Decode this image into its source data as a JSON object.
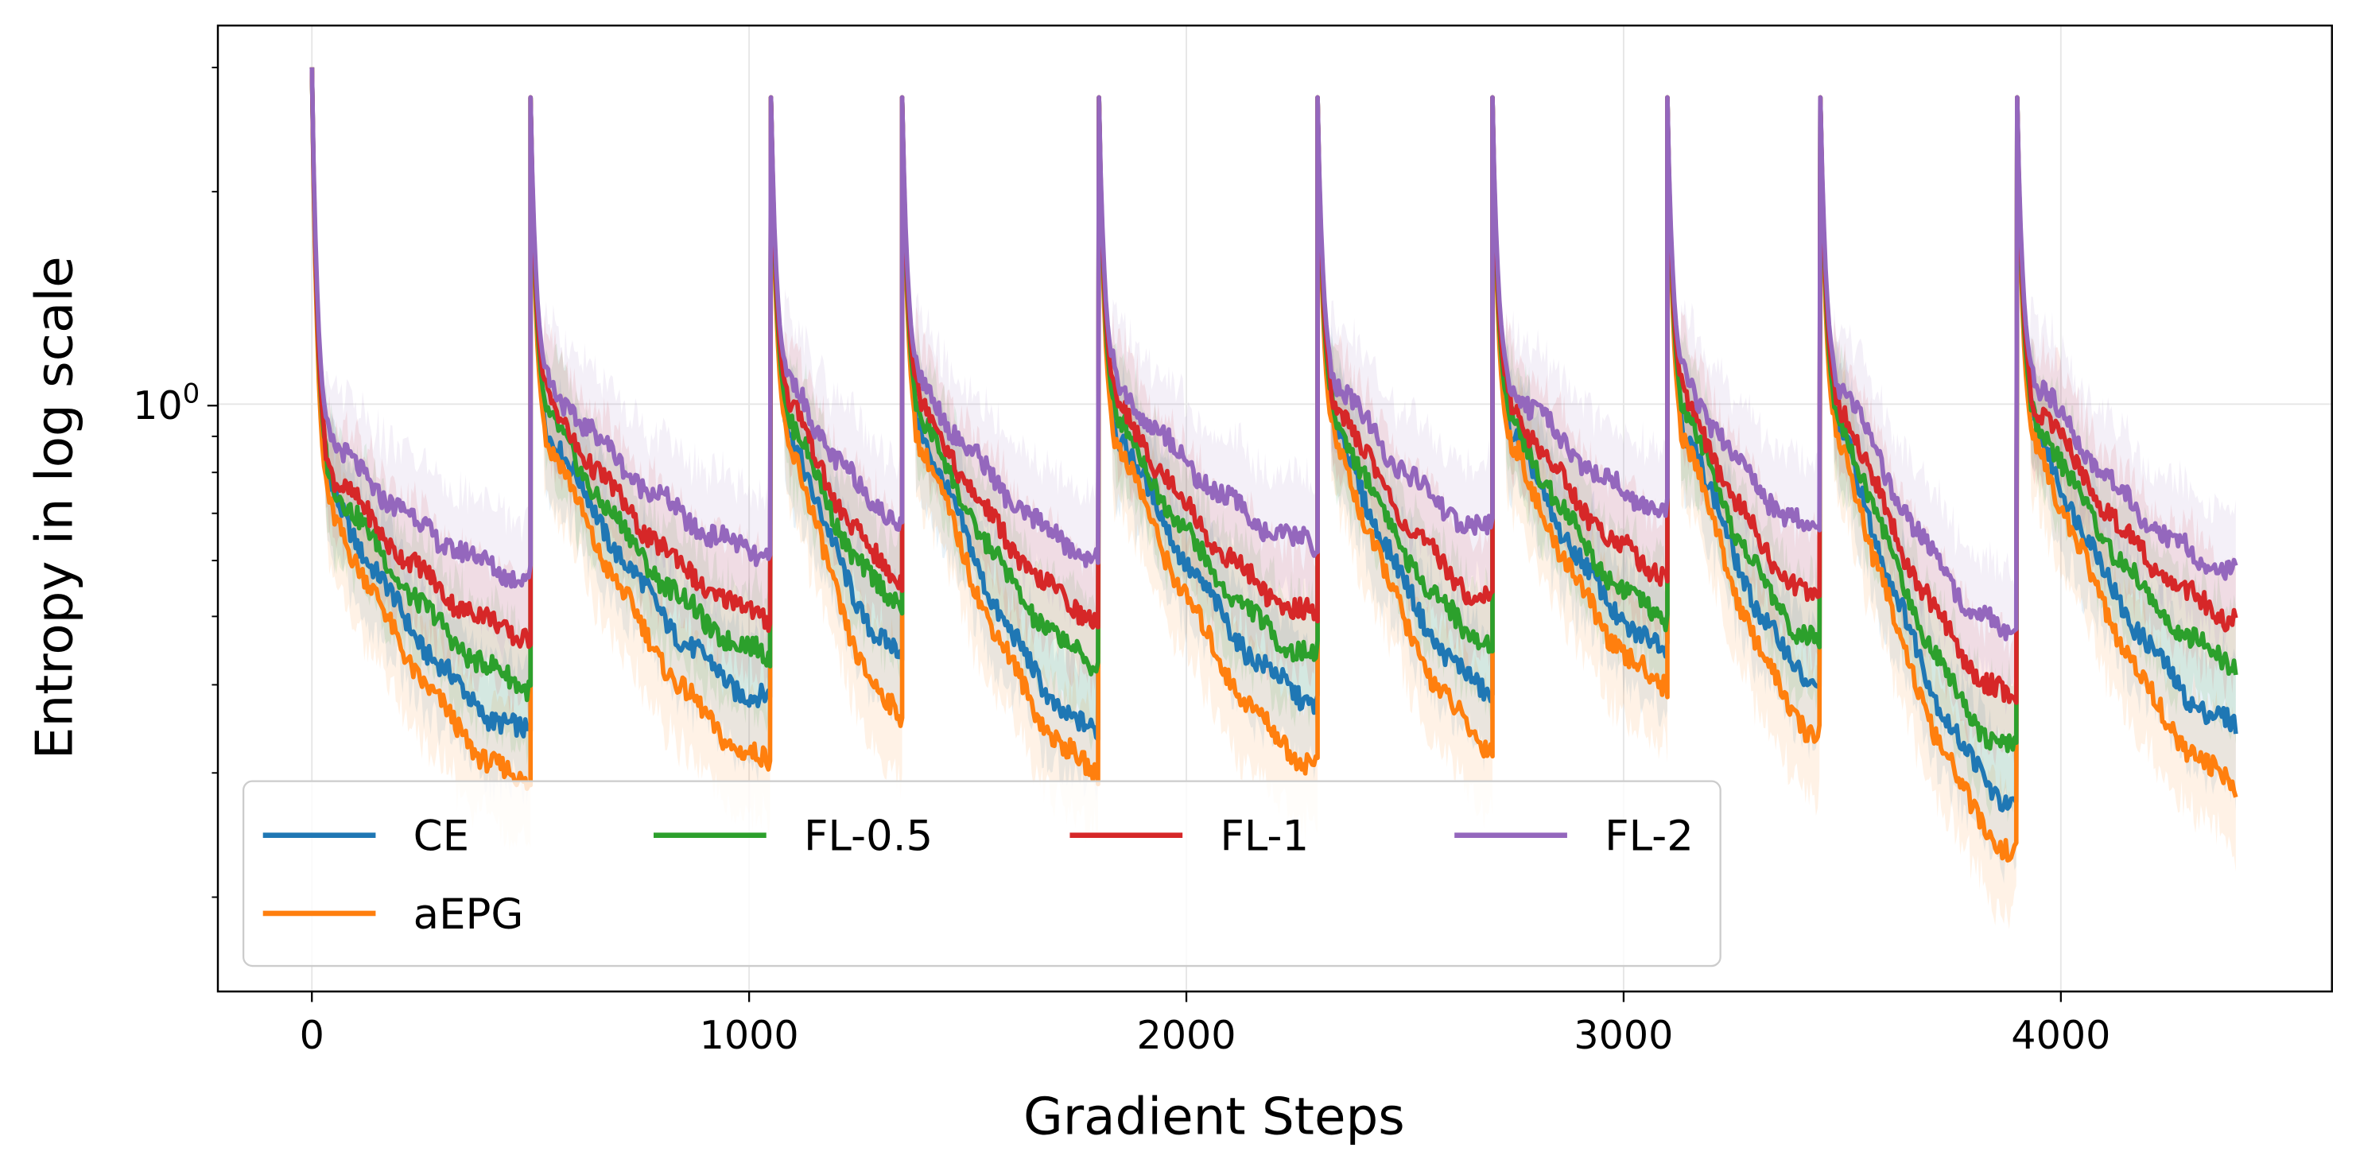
{
  "chart_data": {
    "type": "line",
    "title": "",
    "xlabel": "Gradient Steps",
    "ylabel": "Entropy in log scale",
    "yscale": "log",
    "xlim": [
      -215,
      4620
    ],
    "ylim": [
      0.147,
      3.44
    ],
    "grid": true,
    "xticks": [
      0,
      1000,
      2000,
      3000,
      4000
    ],
    "xtick_labels": [
      "0",
      "1000",
      "2000",
      "3000",
      "4000"
    ],
    "yticks": [
      1.0
    ],
    "ytick_label": {
      "base": "10",
      "exp": "0"
    },
    "y_minor_ticks": [
      0.2,
      0.3,
      0.4,
      0.5,
      0.6,
      0.7,
      0.8,
      0.9,
      2,
      3
    ],
    "legend_placement": "lower-left",
    "initial_value": 3.0,
    "reset_peak": 2.72,
    "segments": [
      [
        0,
        500
      ],
      [
        500,
        1050
      ],
      [
        1050,
        1350
      ],
      [
        1350,
        1800
      ],
      [
        1800,
        2300
      ],
      [
        2300,
        2700
      ],
      [
        2700,
        3100
      ],
      [
        3100,
        3450
      ],
      [
        3450,
        3900
      ],
      [
        3900,
        4400
      ]
    ],
    "series": [
      {
        "name": "CE",
        "color": "#1f77b4",
        "after_reset": [
          0.72,
          0.88,
          0.88,
          0.88,
          0.88,
          0.88,
          0.88,
          0.88,
          0.88,
          0.88
        ],
        "segment_end": [
          0.34,
          0.38,
          0.44,
          0.34,
          0.38,
          0.39,
          0.45,
          0.4,
          0.27,
          0.35
        ]
      },
      {
        "name": "aEPG",
        "color": "#ff7f0e",
        "after_reset": [
          0.68,
          0.84,
          0.84,
          0.84,
          0.84,
          0.84,
          0.84,
          0.84,
          0.84,
          0.84
        ],
        "segment_end": [
          0.29,
          0.31,
          0.36,
          0.3,
          0.31,
          0.33,
          0.4,
          0.34,
          0.23,
          0.29
        ]
      },
      {
        "name": "FL-0.5",
        "color": "#2ca02c",
        "after_reset": [
          0.76,
          0.92,
          0.92,
          0.92,
          0.92,
          0.92,
          0.92,
          0.92,
          0.92,
          0.92
        ],
        "segment_end": [
          0.4,
          0.44,
          0.52,
          0.43,
          0.44,
          0.46,
          0.5,
          0.46,
          0.32,
          0.43
        ]
      },
      {
        "name": "FL-1",
        "color": "#d62728",
        "after_reset": [
          0.78,
          0.97,
          0.97,
          0.97,
          0.97,
          0.97,
          0.97,
          0.97,
          0.97,
          0.97
        ],
        "segment_end": [
          0.47,
          0.5,
          0.57,
          0.5,
          0.5,
          0.53,
          0.58,
          0.53,
          0.38,
          0.5
        ]
      },
      {
        "name": "FL-2",
        "color": "#9467bd",
        "after_reset": [
          0.86,
          1.04,
          1.04,
          1.04,
          1.04,
          1.04,
          1.04,
          1.04,
          1.04,
          1.04
        ],
        "segment_end": [
          0.57,
          0.61,
          0.69,
          0.61,
          0.63,
          0.66,
          0.71,
          0.66,
          0.47,
          0.58
        ]
      }
    ],
    "legend_order": [
      "CE",
      "FL-0.5",
      "FL-1",
      "FL-2",
      "aEPG"
    ]
  }
}
